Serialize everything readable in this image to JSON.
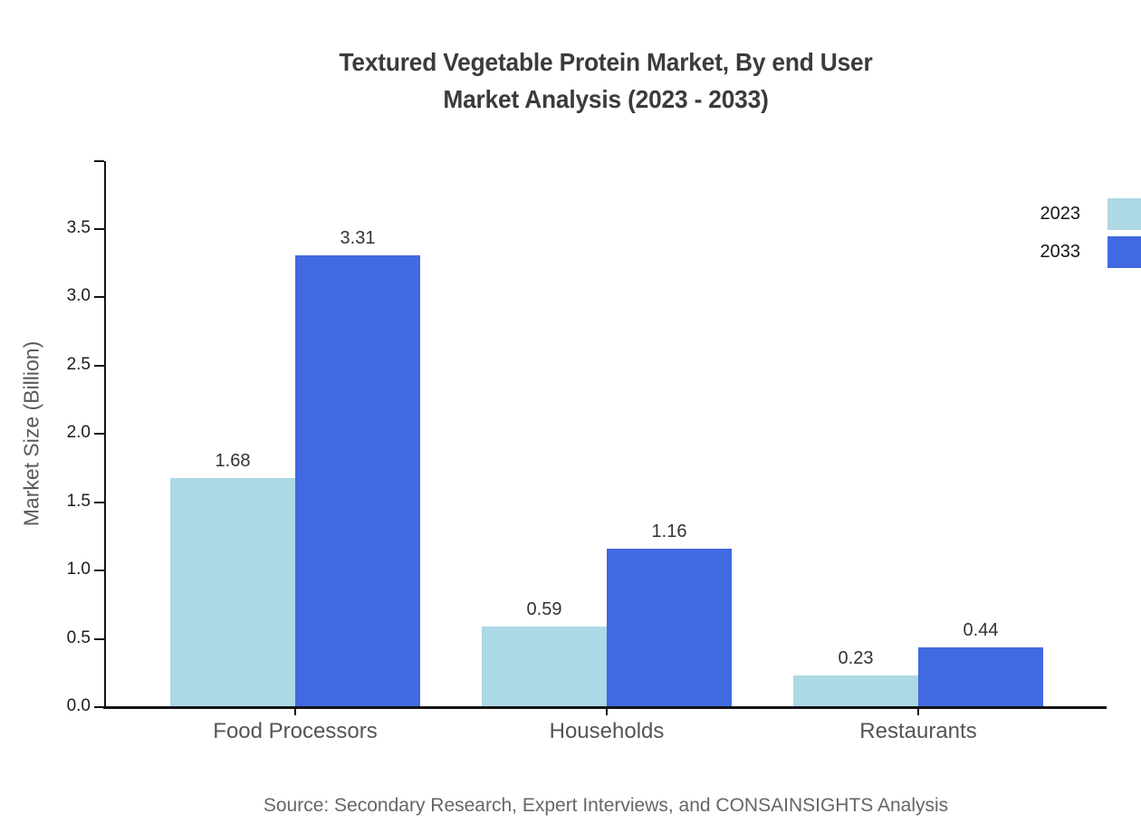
{
  "title": {
    "line1": "Textured Vegetable Protein Market, By end User",
    "line2": "Market Analysis (2023 - 2033)"
  },
  "source": "Source: Secondary Research, Expert Interviews, and CONSAINSIGHTS Analysis",
  "chart_data": {
    "type": "bar",
    "title": "Textured Vegetable Protein Market, By end User Market Analysis (2023 - 2033)",
    "categories": [
      "Food Processors",
      "Households",
      "Restaurants"
    ],
    "series": [
      {
        "name": "2023",
        "color": "#ADD8E6",
        "values": [
          1.68,
          0.59,
          0.23
        ]
      },
      {
        "name": "2033",
        "color": "#4169E1",
        "values": [
          3.31,
          1.16,
          0.44
        ]
      }
    ],
    "value_labels": [
      "1.68",
      "3.31",
      "0.59",
      "1.16",
      "0.23",
      "0.44"
    ],
    "xlabel": "",
    "ylabel": "Market Size (Billion)",
    "ylim": [
      0,
      4.0
    ],
    "yticks": [
      0.0,
      0.5,
      1.0,
      1.5,
      2.0,
      2.5,
      3.0,
      3.5
    ],
    "ytick_labels": [
      "0.0",
      "0.5",
      "1.0",
      "1.5",
      "2.0",
      "2.5",
      "3.0",
      "3.5"
    ],
    "grid": false,
    "legend_position": "top-right",
    "bar_colors": {
      "2023": "#ADD8E6",
      "2033": "#4169E1"
    },
    "axis_color": "#141414",
    "title_color": "#3b3b3b",
    "label_color": "#555555"
  }
}
